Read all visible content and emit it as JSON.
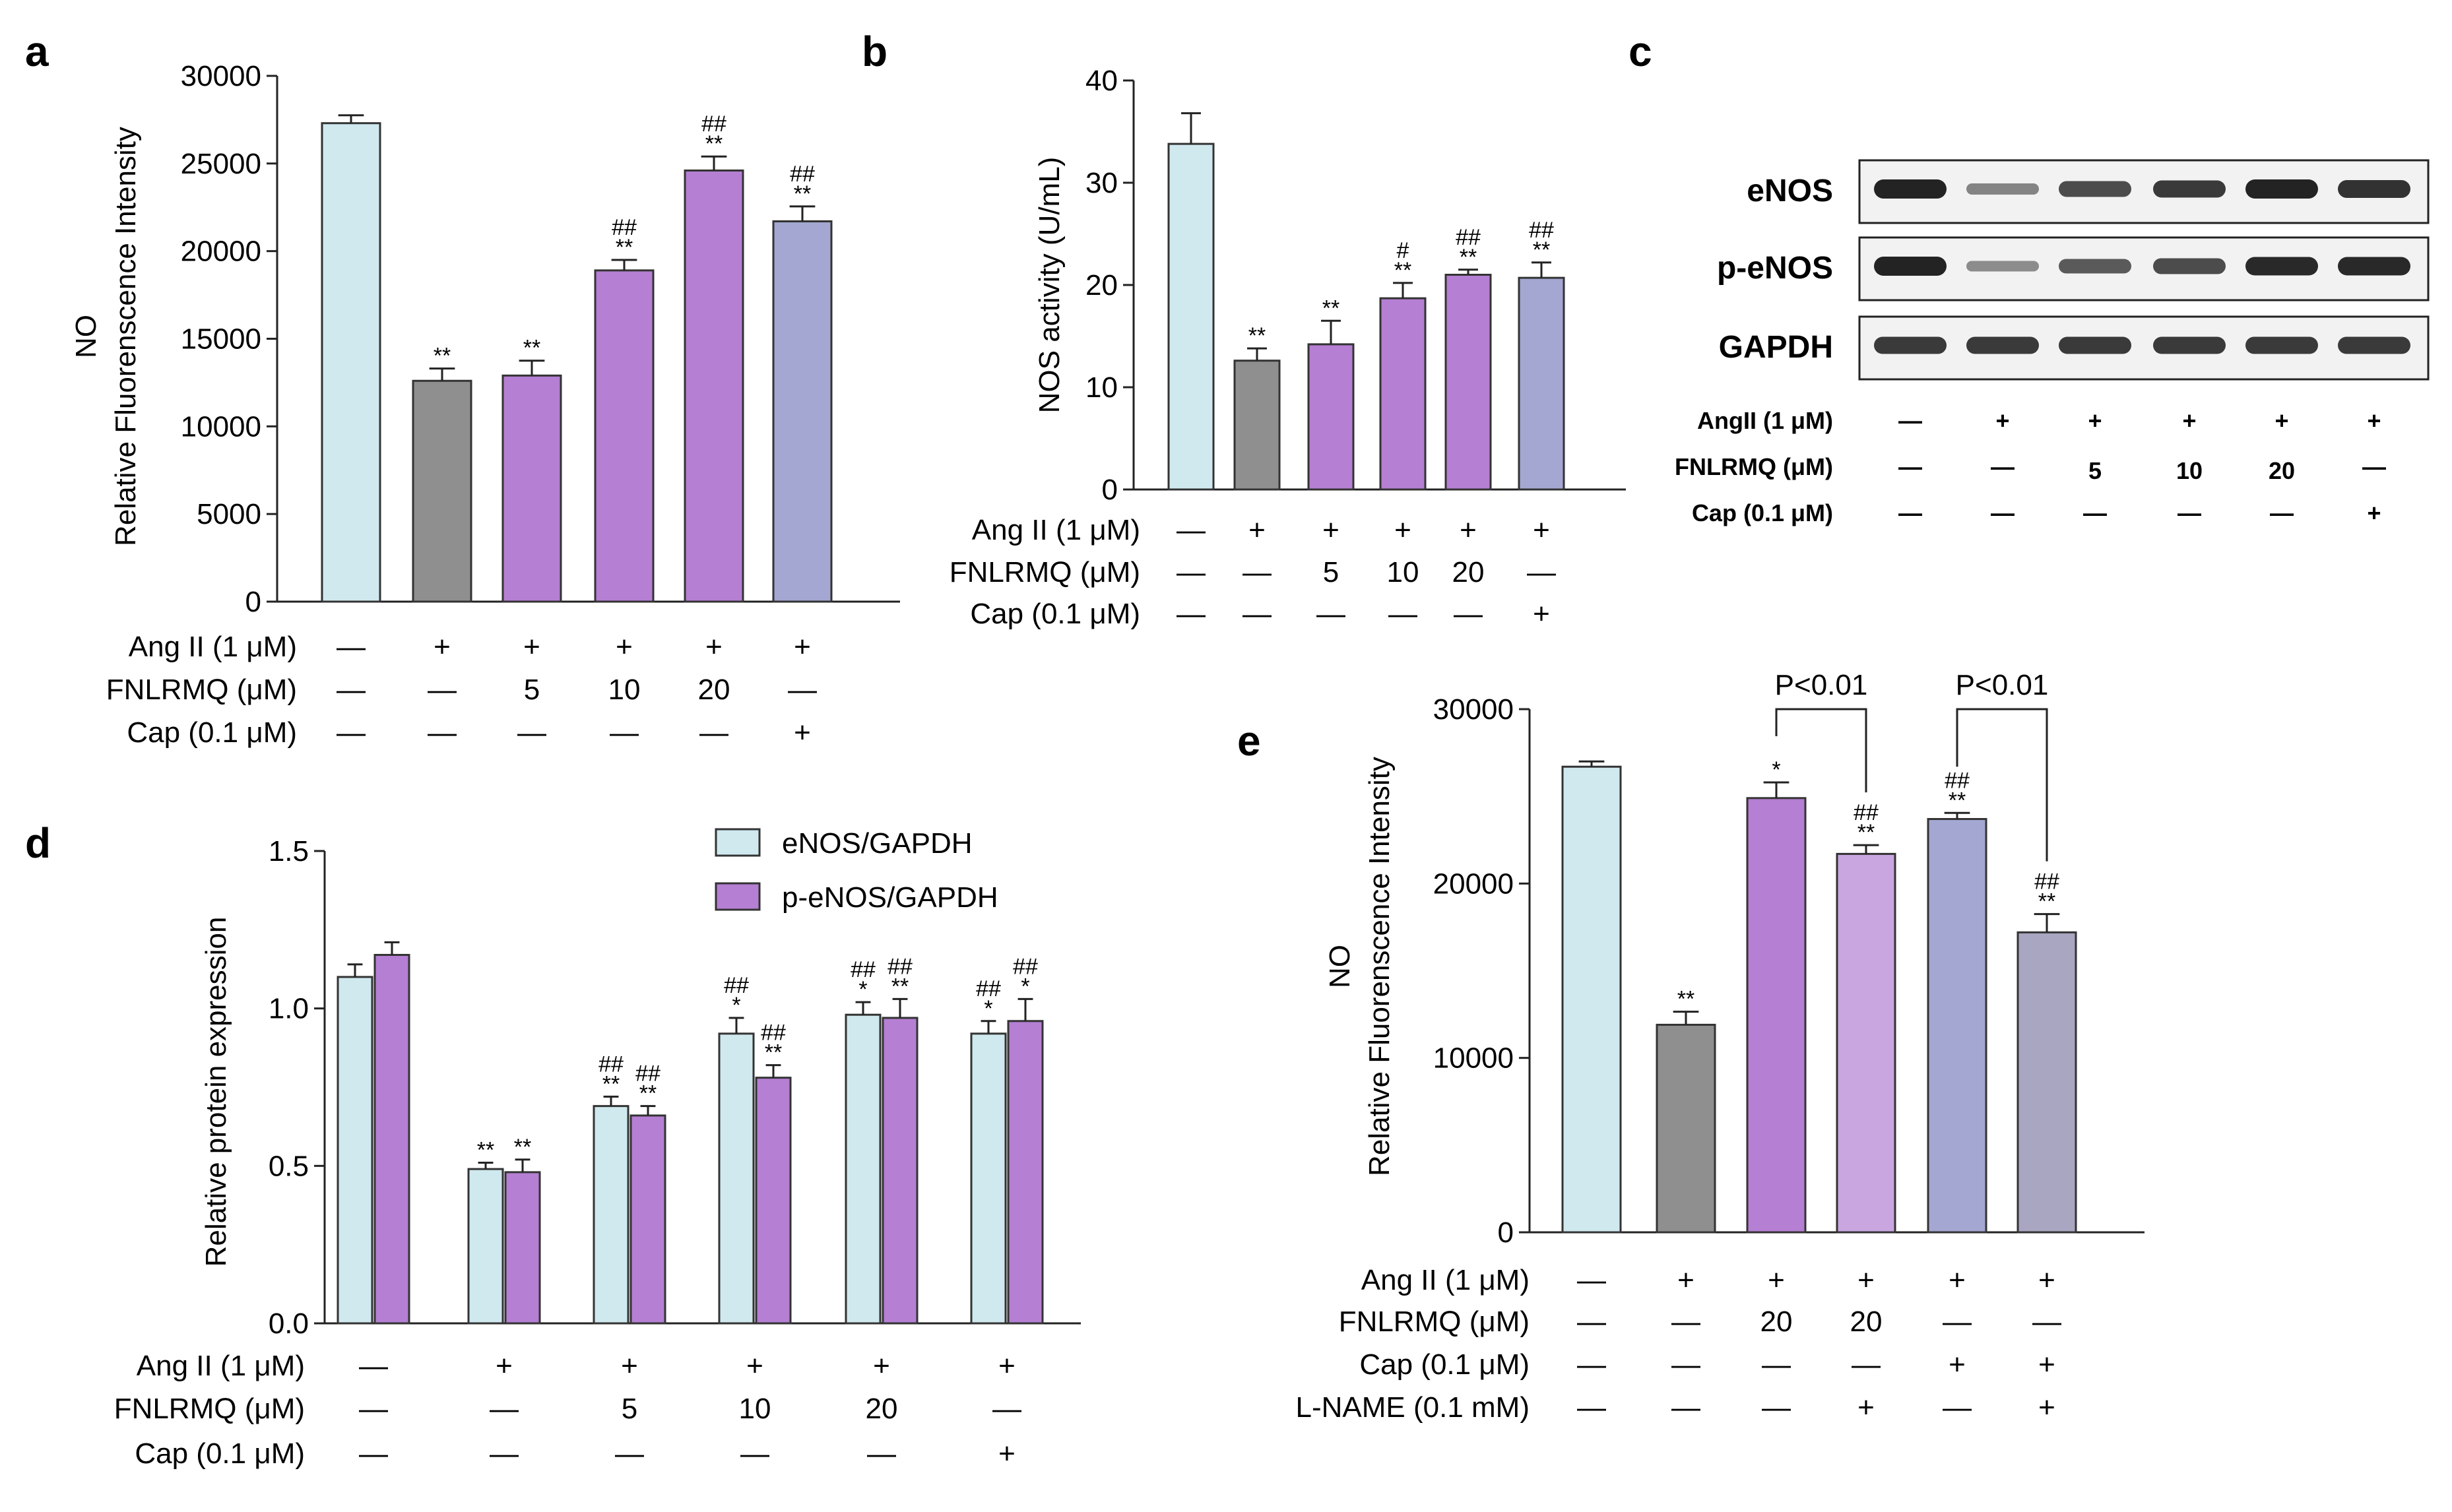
{
  "colors": {
    "control": "#cfe9ef",
    "model": "#8f8f8f",
    "peptide": "#b57fd3",
    "peptide_light": "#c9a6e0",
    "cap": "#a3a7d1",
    "cap_lname": "#a9a6c2",
    "enos": "#cfe9ef",
    "penos": "#b57fd3",
    "edge": "#333333",
    "band": "#1a1a1a"
  },
  "chart_data": [
    {
      "id": "a",
      "panel_label": "a",
      "type": "bar",
      "ylabel_lines": [
        "NO",
        "Relative Fluorenscence Intensity"
      ],
      "ylim": [
        0,
        30000
      ],
      "yticks": [
        0,
        5000,
        10000,
        15000,
        20000,
        25000,
        30000
      ],
      "categories": [
        "1",
        "2",
        "3",
        "4",
        "5",
        "6"
      ],
      "values": [
        27300,
        12600,
        12900,
        18900,
        24600,
        21700
      ],
      "errors": [
        450,
        700,
        850,
        600,
        800,
        850
      ],
      "bar_colors": [
        "control",
        "model",
        "peptide",
        "peptide",
        "peptide",
        "cap"
      ],
      "annotations": [
        [],
        [
          "**"
        ],
        [
          "**"
        ],
        [
          "##",
          "**"
        ],
        [
          "##",
          "**"
        ],
        [
          "##",
          "**"
        ]
      ],
      "conditions": [
        {
          "label": "Ang II (1 μM)",
          "values": [
            "—",
            "+",
            "+",
            "+",
            "+",
            "+"
          ]
        },
        {
          "label": "FNLRMQ (μM)",
          "values": [
            "—",
            "—",
            "5",
            "10",
            "20",
            "—"
          ]
        },
        {
          "label": "Cap (0.1 μM)",
          "values": [
            "—",
            "—",
            "—",
            "—",
            "—",
            "+"
          ]
        }
      ]
    },
    {
      "id": "b",
      "panel_label": "b",
      "type": "bar",
      "ylabel_lines": [
        "NOS activity  (U/mL)"
      ],
      "ylim": [
        0,
        40
      ],
      "yticks": [
        0,
        10,
        20,
        30,
        40
      ],
      "categories": [
        "1",
        "2",
        "3",
        "4",
        "5",
        "6"
      ],
      "values": [
        33.8,
        12.6,
        14.2,
        18.7,
        21.0,
        20.7
      ],
      "errors": [
        3.0,
        1.2,
        2.3,
        1.5,
        0.5,
        1.5
      ],
      "bar_colors": [
        "control",
        "model",
        "peptide",
        "peptide",
        "peptide",
        "cap"
      ],
      "annotations": [
        [],
        [
          "**"
        ],
        [
          "**"
        ],
        [
          "#",
          "**"
        ],
        [
          "##",
          "**"
        ],
        [
          "##",
          "**"
        ]
      ],
      "conditions": [
        {
          "label": "Ang II (1 μM)",
          "values": [
            "—",
            "+",
            "+",
            "+",
            "+",
            "+"
          ]
        },
        {
          "label": "FNLRMQ (μM)",
          "values": [
            "—",
            "—",
            "5",
            "10",
            "20",
            "—"
          ]
        },
        {
          "label": "Cap  (0.1 μM)",
          "values": [
            "—",
            "—",
            "—",
            "—",
            "—",
            "+"
          ]
        }
      ]
    },
    {
      "id": "d",
      "panel_label": "d",
      "type": "bar",
      "ylabel_lines": [
        "Relative protein expression"
      ],
      "ylim": [
        0,
        1.5
      ],
      "yticks": [
        0.0,
        0.5,
        1.0,
        1.5
      ],
      "ytick_labels": [
        "0.0",
        "0.5",
        "1.0",
        "1.5"
      ],
      "categories": [
        "1",
        "2",
        "3",
        "4",
        "5",
        "6"
      ],
      "series": [
        {
          "name": "eNOS/GAPDH",
          "color": "enos",
          "values": [
            1.1,
            0.49,
            0.69,
            0.92,
            0.98,
            0.92
          ],
          "errors": [
            0.04,
            0.02,
            0.03,
            0.05,
            0.04,
            0.04
          ],
          "annotations": [
            [],
            [
              "**"
            ],
            [
              "##",
              "**"
            ],
            [
              "##",
              "*"
            ],
            [
              "##",
              "*"
            ],
            [
              "##",
              "*"
            ]
          ]
        },
        {
          "name": "p-eNOS/GAPDH",
          "color": "penos",
          "values": [
            1.17,
            0.48,
            0.66,
            0.78,
            0.97,
            0.96
          ],
          "errors": [
            0.04,
            0.04,
            0.03,
            0.04,
            0.06,
            0.07
          ],
          "annotations": [
            [],
            [
              "**"
            ],
            [
              "##",
              "**"
            ],
            [
              "##",
              "**"
            ],
            [
              "##",
              "**"
            ],
            [
              "##",
              "*"
            ]
          ]
        }
      ],
      "conditions": [
        {
          "label": "Ang II (1 μM)",
          "values": [
            "—",
            "+",
            "+",
            "+",
            "+",
            "+"
          ]
        },
        {
          "label": "FNLRMQ (μM)",
          "values": [
            "—",
            "—",
            "5",
            "10",
            "20",
            "—"
          ]
        },
        {
          "label": "Cap (0.1 μM)",
          "values": [
            "—",
            "—",
            "—",
            "—",
            "—",
            "+"
          ]
        }
      ],
      "legend_position": "top-right"
    },
    {
      "id": "e",
      "panel_label": "e",
      "type": "bar",
      "ylabel_lines": [
        "NO",
        "Relative Fluorenscence Intensity"
      ],
      "ylim": [
        0,
        30000
      ],
      "yticks": [
        0,
        10000,
        20000,
        30000
      ],
      "categories": [
        "1",
        "2",
        "3",
        "4",
        "5",
        "6"
      ],
      "values": [
        26700,
        11900,
        24900,
        21700,
        23700,
        17200
      ],
      "errors": [
        300,
        750,
        900,
        500,
        350,
        1050
      ],
      "bar_colors": [
        "control",
        "model",
        "peptide",
        "peptide_light",
        "cap",
        "cap_lname"
      ],
      "annotations": [
        [],
        [
          "**"
        ],
        [
          "*"
        ],
        [
          "##",
          "**"
        ],
        [
          "##",
          "**"
        ],
        [
          "##",
          "**"
        ]
      ],
      "brackets": [
        {
          "from": 2,
          "to": 3,
          "label": "P<0.01"
        },
        {
          "from": 4,
          "to": 5,
          "label": "P<0.01"
        }
      ],
      "conditions": [
        {
          "label": "Ang II (1 μM)",
          "values": [
            "—",
            "+",
            "+",
            "+",
            "+",
            "+"
          ]
        },
        {
          "label": "FNLRMQ (μM)",
          "values": [
            "—",
            "—",
            "20",
            "20",
            "—",
            "—"
          ]
        },
        {
          "label": "Cap (0.1 μM)",
          "values": [
            "—",
            "—",
            "—",
            "—",
            "+",
            "+"
          ]
        },
        {
          "label": "L-NAME (0.1 mM)",
          "values": [
            "—",
            "—",
            "—",
            "+",
            "—",
            "+"
          ]
        }
      ]
    }
  ],
  "blot": {
    "panel_label": "c",
    "rows": [
      {
        "label": "eNOS",
        "intensities": [
          0.95,
          0.35,
          0.7,
          0.8,
          0.95,
          0.85
        ]
      },
      {
        "label": "p-eNOS",
        "intensities": [
          0.95,
          0.3,
          0.6,
          0.7,
          0.9,
          0.9
        ]
      },
      {
        "label": "GAPDH",
        "intensities": [
          0.8,
          0.8,
          0.8,
          0.8,
          0.8,
          0.8
        ]
      }
    ],
    "conditions": [
      {
        "label": "AngII (1 μM)",
        "values": [
          "—",
          "+",
          "+",
          "+",
          "+",
          "+"
        ]
      },
      {
        "label": "FNLRMQ (μM)",
        "values": [
          "—",
          "—",
          "5",
          "10",
          "20",
          "—"
        ]
      },
      {
        "label": "Cap (0.1 μM)",
        "values": [
          "—",
          "—",
          "—",
          "—",
          "—",
          "+"
        ]
      }
    ]
  }
}
